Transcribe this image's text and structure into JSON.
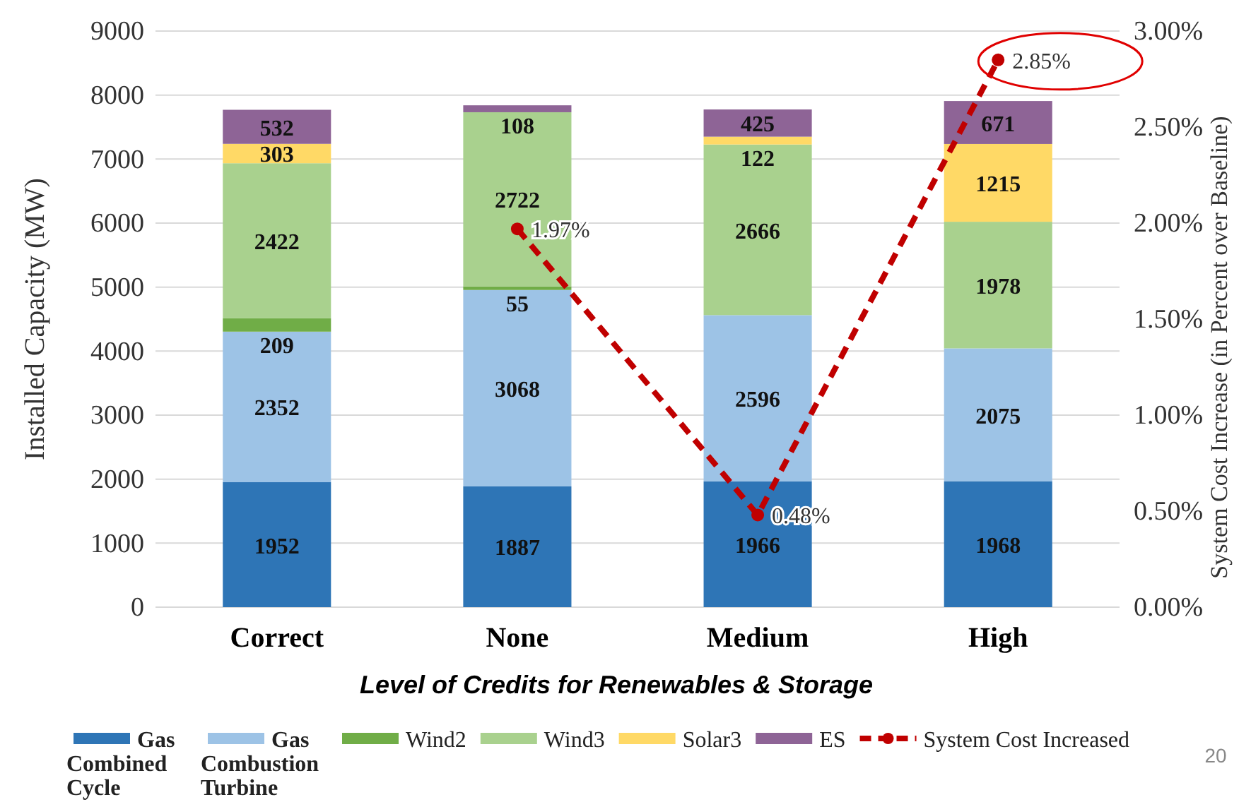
{
  "chart_data": {
    "type": "bar",
    "stacked": true,
    "xlabel": "Level of Credits for Renewables & Storage",
    "ylabel": "Installed Capacity (MW)",
    "y2label": "System Cost Increase (in Percent over Baseline)",
    "categories": [
      "Correct",
      "None",
      "Medium",
      "High"
    ],
    "ylim": [
      0,
      9000
    ],
    "yticks": [
      0,
      1000,
      2000,
      3000,
      4000,
      5000,
      6000,
      7000,
      8000,
      9000
    ],
    "y2lim": [
      0,
      3
    ],
    "y2ticks": [
      {
        "value": 0,
        "label": "0.00%"
      },
      {
        "value": 0.5,
        "label": "0.50%"
      },
      {
        "value": 1,
        "label": "1.00%"
      },
      {
        "value": 1.5,
        "label": "1.50%"
      },
      {
        "value": 2,
        "label": "2.00%"
      },
      {
        "value": 2.5,
        "label": "2.50%"
      },
      {
        "value": 3,
        "label": "3.00%"
      }
    ],
    "grid": "y",
    "legend": "bottom",
    "series": [
      {
        "name": "Gas Combined Cycle",
        "color": "#2e75b6",
        "values": [
          1952,
          1887,
          1966,
          1968
        ],
        "value_labels": [
          "1952",
          "1887",
          "1966",
          "1968"
        ]
      },
      {
        "name": "Gas Combustion Turbine",
        "color": "#9dc3e6",
        "values": [
          2352,
          3068,
          2596,
          2075
        ],
        "value_labels": [
          "2352",
          "3068",
          "2596",
          "2075"
        ]
      },
      {
        "name": "Wind2",
        "color": "#70ad47",
        "values": [
          209,
          55,
          0,
          0
        ],
        "value_labels": [
          "209",
          "55",
          null,
          null
        ]
      },
      {
        "name": "Wind3",
        "color": "#a9d18e",
        "values": [
          2422,
          2722,
          2666,
          1978
        ],
        "value_labels": [
          "2422",
          "2722",
          "2666",
          "1978"
        ]
      },
      {
        "name": "Solar3",
        "color": "#ffd966",
        "values": [
          303,
          0,
          122,
          1215
        ],
        "value_labels": [
          "303",
          null,
          "122",
          "1215"
        ]
      },
      {
        "name": "ES",
        "color": "#8e6496",
        "values": [
          532,
          108,
          425,
          671
        ],
        "value_labels": [
          "532",
          "108",
          "425",
          "671"
        ]
      },
      {
        "name": "System Cost Increased",
        "type": "line",
        "axis": "y2",
        "color": "#c00000",
        "line_style": "dashed",
        "marker": "circle",
        "values": [
          null,
          1.97,
          0.48,
          2.85
        ],
        "value_labels": [
          null,
          "1.97%",
          "0.48%",
          "2.85%"
        ]
      }
    ],
    "annotations": [
      "20"
    ]
  }
}
